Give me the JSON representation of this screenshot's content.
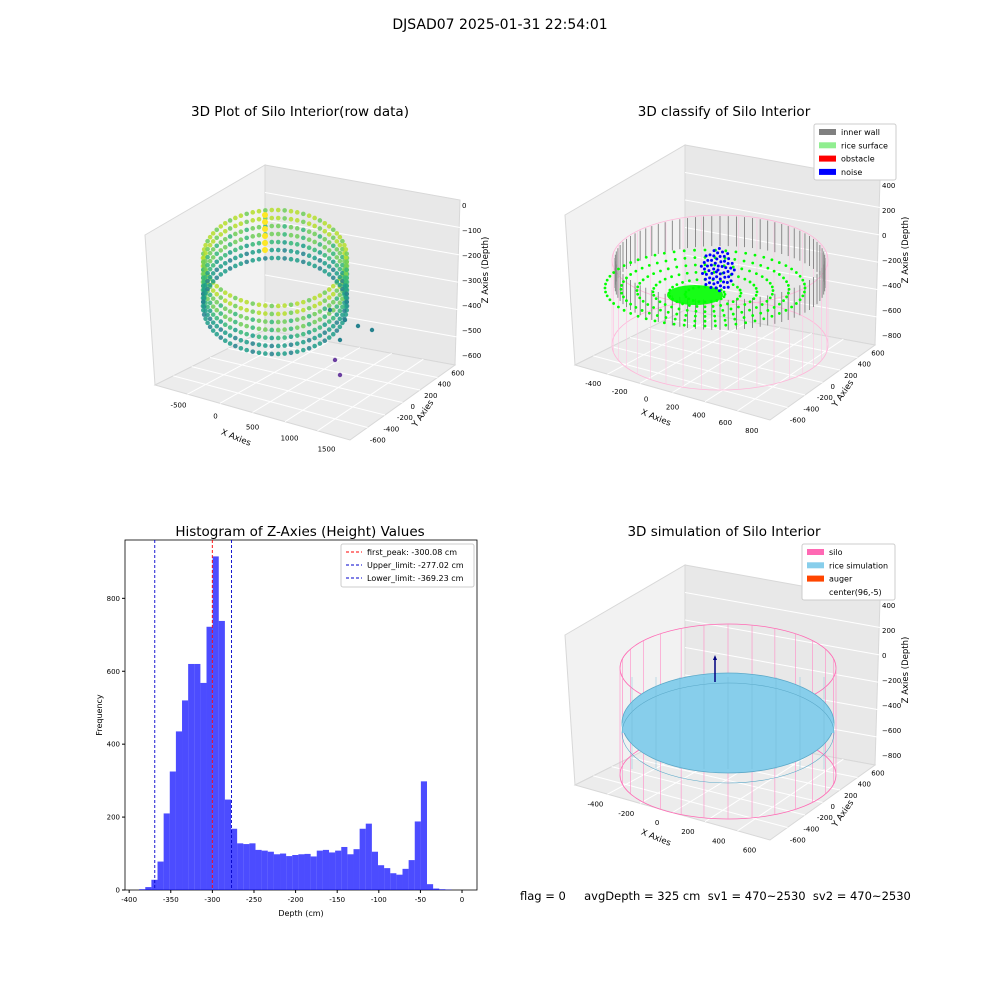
{
  "figure_title": "DJSAD07 2025-01-31 22:54:01",
  "footer_text": "flag = 0     avgDepth = 325 cm  sv1 = 470~2530  sv2 = 470~2530",
  "chart_data": [
    {
      "type": "scatter3d",
      "title": "3D Plot of Silo Interior(row data)",
      "xlabel": "X Axies",
      "ylabel": "Y Axies",
      "zlabel": "Z Axies (Depth)",
      "x_ticks": [
        "-500",
        "0",
        "500",
        "1000",
        "1500"
      ],
      "y_ticks": [
        "600",
        "400",
        "200",
        "0",
        "-200",
        "-400",
        "-600"
      ],
      "z_ticks": [
        "0",
        "−100",
        "−200",
        "−300",
        "−400",
        "−500",
        "−600"
      ],
      "colormap": "viridis"
    },
    {
      "type": "scatter3d",
      "title": "3D classify of Silo Interior",
      "xlabel": "X Axies",
      "ylabel": "Y Axies",
      "zlabel": "Z Axies (Depth)",
      "x_ticks": [
        "-400",
        "-200",
        "0",
        "200",
        "400",
        "600",
        "800"
      ],
      "y_ticks": [
        "600",
        "400",
        "200",
        "0",
        "-200",
        "-400",
        "-600"
      ],
      "z_ticks": [
        "400",
        "200",
        "0",
        "−200",
        "−400",
        "−600",
        "−800"
      ],
      "legend": [
        {
          "label": "inner wall",
          "color": "#808080"
        },
        {
          "label": "rice surface",
          "color": "#90ee90"
        },
        {
          "label": "obstacle",
          "color": "#ff0000"
        },
        {
          "label": "noise",
          "color": "#0000ff"
        }
      ],
      "legend_position": "top-right"
    },
    {
      "type": "bar",
      "title": "Histogram of Z-Axies (Height) Values",
      "xlabel": "Depth (cm)",
      "ylabel": "Frequency",
      "xlim": [
        -405,
        18
      ],
      "ylim": [
        0,
        960
      ],
      "x_ticks": [
        -400,
        -350,
        -300,
        -250,
        -200,
        -150,
        -100,
        -50,
        0
      ],
      "y_ticks": [
        0,
        200,
        400,
        600,
        800
      ],
      "bin_width": 7.36,
      "bin_start": -388,
      "values": [
        2,
        8,
        28,
        78,
        210,
        325,
        435,
        520,
        620,
        620,
        568,
        722,
        915,
        738,
        248,
        168,
        128,
        126,
        128,
        110,
        108,
        105,
        98,
        100,
        93,
        96,
        98,
        99,
        92,
        108,
        110,
        103,
        108,
        118,
        98,
        112,
        168,
        182,
        105,
        68,
        60,
        46,
        42,
        58,
        82,
        188,
        298,
        16,
        4,
        2,
        1
      ],
      "color": "#0000ff",
      "vlines": [
        {
          "label": "first_peak: -300.08 cm",
          "x": -300.08,
          "color": "#ff0000"
        },
        {
          "label": "Upper_limit: -277.02 cm",
          "x": -277.02,
          "color": "#0000cc"
        },
        {
          "label": "Lower_limit: -369.23 cm",
          "x": -369.23,
          "color": "#0000cc"
        }
      ],
      "legend_position": "top-right",
      "grid": false
    },
    {
      "type": "surface3d",
      "title": "3D simulation of Silo Interior",
      "xlabel": "X Axies",
      "ylabel": "Y Axies",
      "zlabel": "Z Axies (Depth)",
      "x_ticks": [
        "-400",
        "-200",
        "0",
        "200",
        "400",
        "600"
      ],
      "y_ticks": [
        "600",
        "400",
        "200",
        "0",
        "-200",
        "-400",
        "-600"
      ],
      "z_ticks": [
        "400",
        "200",
        "0",
        "−200",
        "−400",
        "−600",
        "−800"
      ],
      "legend": [
        {
          "label": "silo",
          "color": "#ff69b4"
        },
        {
          "label": "rice simulation",
          "color": "#87ceeb"
        },
        {
          "label": "auger",
          "color": "#ff4500"
        },
        {
          "label": "center(96,-5)",
          "color": ""
        }
      ],
      "legend_position": "top-right"
    }
  ]
}
